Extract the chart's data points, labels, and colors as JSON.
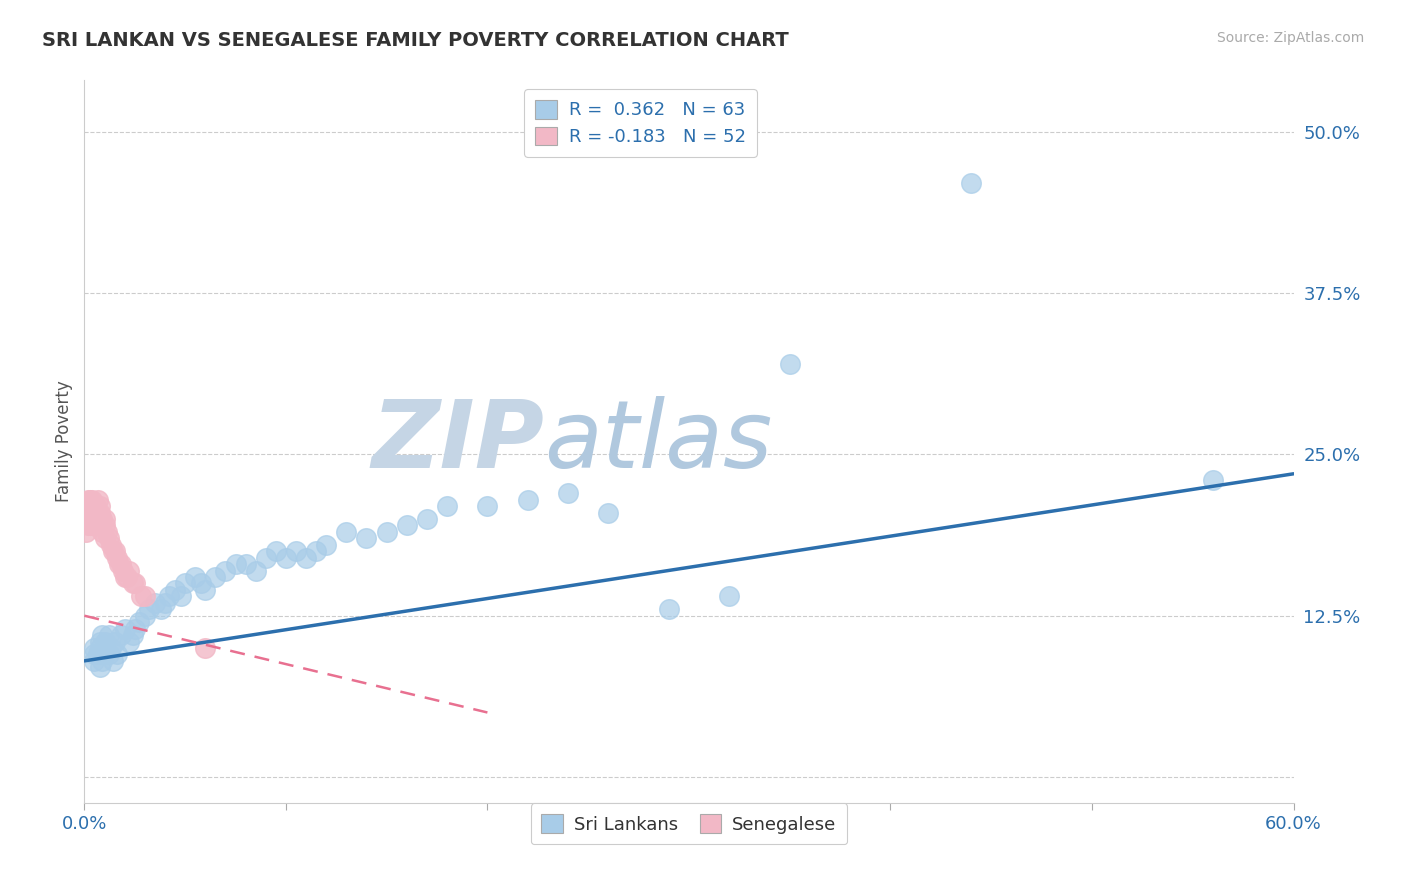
{
  "title": "SRI LANKAN VS SENEGALESE FAMILY POVERTY CORRELATION CHART",
  "source_text": "Source: ZipAtlas.com",
  "ylabel": "Family Poverty",
  "yticks": [
    0.0,
    0.125,
    0.25,
    0.375,
    0.5
  ],
  "ytick_labels": [
    "",
    "12.5%",
    "25.0%",
    "37.5%",
    "50.0%"
  ],
  "xlim": [
    0.0,
    0.6
  ],
  "ylim": [
    -0.02,
    0.54
  ],
  "sri_lankan_R": 0.362,
  "sri_lankan_N": 63,
  "senegalese_R": -0.183,
  "senegalese_N": 52,
  "blue_color": "#a8cce8",
  "pink_color": "#f2b8c6",
  "blue_line_color": "#2c6fad",
  "pink_line_color": "#e87090",
  "watermark_color_zip": "#c8d8e8",
  "watermark_color_atlas": "#b8cce0",
  "background_color": "#ffffff",
  "legend_box_color": "#f8f8f8",
  "sl_x": [
    0.005,
    0.005,
    0.005,
    0.007,
    0.008,
    0.008,
    0.008,
    0.009,
    0.009,
    0.01,
    0.01,
    0.01,
    0.012,
    0.012,
    0.013,
    0.014,
    0.015,
    0.016,
    0.018,
    0.02,
    0.022,
    0.024,
    0.025,
    0.027,
    0.03,
    0.032,
    0.035,
    0.038,
    0.04,
    0.042,
    0.045,
    0.048,
    0.05,
    0.055,
    0.058,
    0.06,
    0.065,
    0.07,
    0.075,
    0.08,
    0.085,
    0.09,
    0.095,
    0.1,
    0.105,
    0.11,
    0.115,
    0.12,
    0.13,
    0.14,
    0.15,
    0.16,
    0.17,
    0.18,
    0.2,
    0.22,
    0.24,
    0.26,
    0.29,
    0.32,
    0.35,
    0.44,
    0.56
  ],
  "sl_y": [
    0.095,
    0.1,
    0.09,
    0.095,
    0.105,
    0.085,
    0.1,
    0.09,
    0.11,
    0.1,
    0.095,
    0.105,
    0.11,
    0.095,
    0.1,
    0.09,
    0.105,
    0.095,
    0.11,
    0.115,
    0.105,
    0.11,
    0.115,
    0.12,
    0.125,
    0.13,
    0.135,
    0.13,
    0.135,
    0.14,
    0.145,
    0.14,
    0.15,
    0.155,
    0.15,
    0.145,
    0.155,
    0.16,
    0.165,
    0.165,
    0.16,
    0.17,
    0.175,
    0.17,
    0.175,
    0.17,
    0.175,
    0.18,
    0.19,
    0.185,
    0.19,
    0.195,
    0.2,
    0.21,
    0.21,
    0.215,
    0.22,
    0.205,
    0.13,
    0.14,
    0.32,
    0.46,
    0.23
  ],
  "sn_x": [
    0.001,
    0.001,
    0.001,
    0.002,
    0.002,
    0.002,
    0.002,
    0.003,
    0.003,
    0.003,
    0.003,
    0.003,
    0.004,
    0.004,
    0.004,
    0.004,
    0.005,
    0.005,
    0.005,
    0.005,
    0.006,
    0.006,
    0.006,
    0.007,
    0.007,
    0.007,
    0.008,
    0.008,
    0.008,
    0.008,
    0.009,
    0.009,
    0.01,
    0.01,
    0.01,
    0.011,
    0.012,
    0.013,
    0.014,
    0.015,
    0.016,
    0.017,
    0.018,
    0.019,
    0.02,
    0.021,
    0.022,
    0.024,
    0.025,
    0.028,
    0.03,
    0.06
  ],
  "sn_y": [
    0.2,
    0.21,
    0.19,
    0.205,
    0.215,
    0.195,
    0.2,
    0.21,
    0.195,
    0.205,
    0.215,
    0.2,
    0.195,
    0.205,
    0.21,
    0.215,
    0.2,
    0.205,
    0.195,
    0.21,
    0.2,
    0.195,
    0.21,
    0.205,
    0.215,
    0.2,
    0.195,
    0.205,
    0.21,
    0.2,
    0.19,
    0.2,
    0.195,
    0.185,
    0.2,
    0.19,
    0.185,
    0.18,
    0.175,
    0.175,
    0.17,
    0.165,
    0.165,
    0.16,
    0.155,
    0.155,
    0.16,
    0.15,
    0.15,
    0.14,
    0.14,
    0.1
  ],
  "sl_trend_x": [
    0.0,
    0.6
  ],
  "sl_trend_y": [
    0.09,
    0.235
  ],
  "sn_trend_x": [
    0.0,
    0.2
  ],
  "sn_trend_y": [
    0.125,
    0.05
  ]
}
